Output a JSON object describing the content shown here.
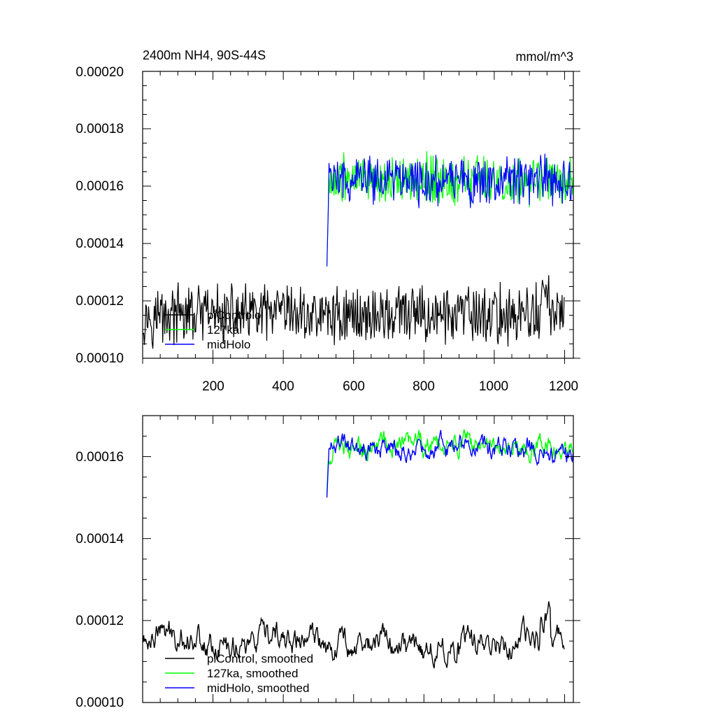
{
  "charts": [
    {
      "type": "line",
      "title_left": "2400m NH4, 90S-44S",
      "title_right": "mmol/m^3",
      "x_range": [
        0,
        1225
      ],
      "y_range": [
        0.0001,
        0.0002
      ],
      "x_ticks": [
        "200",
        "400",
        "600",
        "800",
        "1000",
        "1200"
      ],
      "y_ticks": [
        "0.00010",
        "0.00012",
        "0.00014",
        "0.00016",
        "0.00018",
        "0.00020"
      ],
      "legend": [
        "piControlo",
        "127ka",
        "midHolo"
      ],
      "series": [
        {
          "name": "piControlo",
          "color": "#000000",
          "x_start": 1,
          "x_end": 1200,
          "mean": 0.000115,
          "noise": 8.5e-06,
          "raw": true
        },
        {
          "name": "127ka",
          "color": "#00ff00",
          "x_start": 524,
          "x_end": 1225,
          "mean": 0.000162,
          "noise": 7.5e-06,
          "raw": true
        },
        {
          "name": "midHolo",
          "color": "#0000ff",
          "x_start": 524,
          "x_end": 1225,
          "mean": 0.000162,
          "noise": 7e-06,
          "raw": true
        }
      ]
    },
    {
      "type": "line",
      "x_range": [
        0,
        1225
      ],
      "y_range": [
        0.0001,
        0.00017
      ],
      "y_ticks": [
        "0.00010",
        "0.00012",
        "0.00014",
        "0.00016"
      ],
      "legend": [
        "piControl, smoothed",
        "127ka, smoothed",
        "midHolo, smoothed"
      ],
      "series": [
        {
          "name": "piControl, smoothed",
          "color": "#000000",
          "x_start": 1,
          "x_end": 1200,
          "mean": 0.000115,
          "noise": 2.8e-06,
          "raw": false
        },
        {
          "name": "127ka, smoothed",
          "color": "#00ff00",
          "x_start": 524,
          "x_end": 1225,
          "mean": 0.000163,
          "noise": 2.2e-06,
          "raw": false
        },
        {
          "name": "midHolo, smoothed",
          "color": "#0000ff",
          "x_start": 524,
          "x_end": 1225,
          "mean": 0.000162,
          "noise": 2.2e-06,
          "raw": false
        }
      ]
    }
  ],
  "chart_data": [
    {
      "type": "line",
      "title": "2400m NH4, 90S-44S",
      "units": "mmol/m^3",
      "xlim": [
        0,
        1225
      ],
      "ylim": [
        0.0001,
        0.0002
      ],
      "series": [
        {
          "name": "piControlo",
          "x_range": [
            1,
            1200
          ],
          "approx_mean": 0.000115,
          "approx_range": [
            0.000104,
            0.000131
          ]
        },
        {
          "name": "127ka",
          "x_range": [
            524,
            1225
          ],
          "approx_mean": 0.000162,
          "approx_range": [
            0.000147,
            0.000183
          ]
        },
        {
          "name": "midHolo",
          "x_range": [
            524,
            1225
          ],
          "approx_mean": 0.000162,
          "approx_range": [
            0.00013,
            0.000181
          ]
        }
      ]
    },
    {
      "type": "line",
      "xlim": [
        0,
        1225
      ],
      "ylim": [
        0.0001,
        0.00017
      ],
      "series": [
        {
          "name": "piControl, smoothed",
          "x_range": [
            1,
            1200
          ],
          "approx_mean": 0.000115,
          "approx_range": [
            0.000108,
            0.000126
          ]
        },
        {
          "name": "127ka, smoothed",
          "x_range": [
            524,
            1225
          ],
          "approx_mean": 0.000163,
          "approx_range": [
            0.000157,
            0.000168
          ]
        },
        {
          "name": "midHolo, smoothed",
          "x_range": [
            524,
            1225
          ],
          "approx_mean": 0.000162,
          "approx_range": [
            0.000149,
            0.000166
          ]
        }
      ]
    }
  ]
}
